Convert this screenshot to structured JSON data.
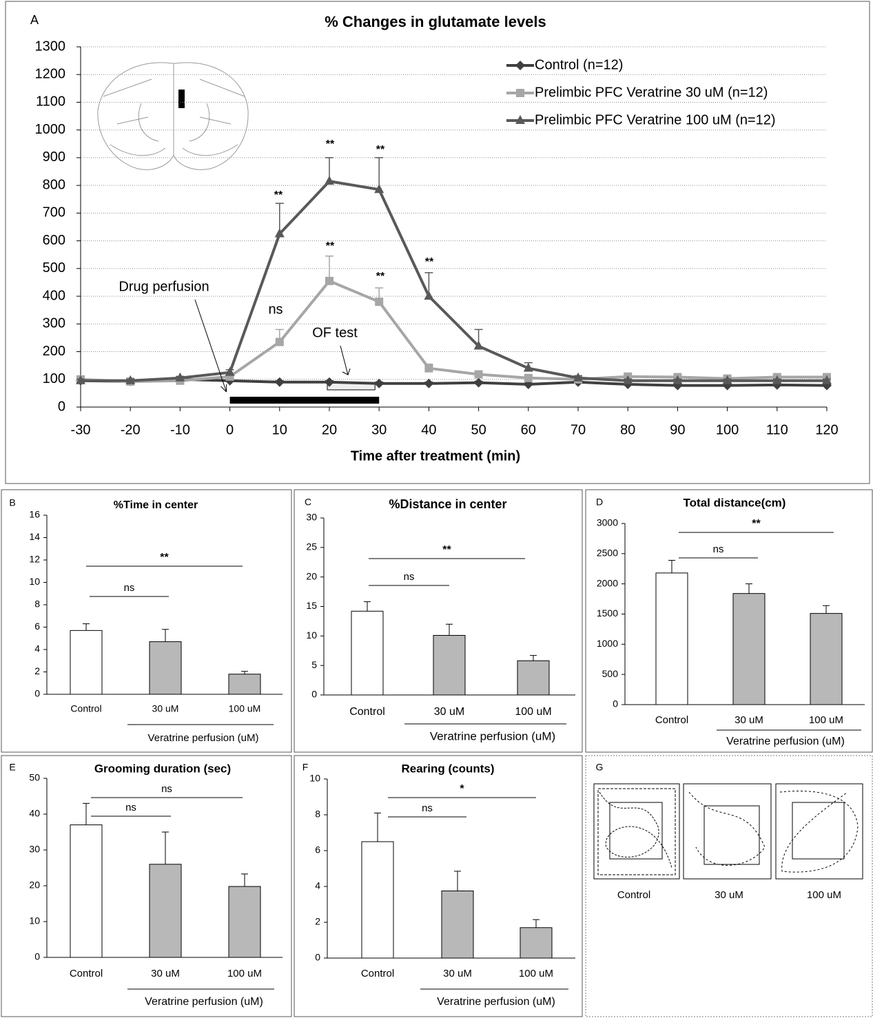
{
  "chart_data": [
    {
      "type": "line",
      "panel": "A",
      "title": "% Changes in glutamate levels",
      "xlabel": "Time after treatment (min)",
      "x": [
        -30,
        -20,
        -10,
        0,
        10,
        20,
        30,
        40,
        50,
        60,
        70,
        80,
        90,
        100,
        110,
        120
      ],
      "xlim": [
        -30,
        120
      ],
      "xticks": [
        -30,
        -20,
        -10,
        0,
        10,
        20,
        30,
        40,
        50,
        60,
        70,
        80,
        90,
        100,
        110,
        120
      ],
      "ylim": [
        0,
        1300
      ],
      "yticks": [
        0,
        100,
        200,
        300,
        400,
        500,
        600,
        700,
        800,
        900,
        1000,
        1100,
        1200,
        1300
      ],
      "grid": true,
      "legend": "upper right",
      "series": [
        {
          "name": "Control (n=12)",
          "color": "#404040",
          "marker": "diamond",
          "values": [
            95,
            93,
            100,
            95,
            90,
            90,
            85,
            85,
            88,
            82,
            90,
            82,
            78,
            78,
            80,
            78
          ],
          "errors": [
            5,
            5,
            5,
            5,
            5,
            5,
            5,
            5,
            5,
            5,
            5,
            5,
            5,
            5,
            5,
            5
          ]
        },
        {
          "name": "Prelimbic PFC Veratrine 30 uM (n=12)",
          "color": "#a6a6a6",
          "marker": "square",
          "values": [
            100,
            92,
            95,
            110,
            235,
            455,
            380,
            140,
            118,
            105,
            100,
            110,
            108,
            103,
            108,
            108
          ],
          "errors": [
            8,
            6,
            6,
            10,
            45,
            90,
            50,
            15,
            10,
            8,
            8,
            10,
            10,
            8,
            10,
            10
          ]
        },
        {
          "name": "Prelimbic PFC Veratrine 100 uM (n=12)",
          "color": "#595959",
          "marker": "triangle",
          "values": [
            95,
            95,
            105,
            125,
            625,
            815,
            785,
            400,
            220,
            140,
            105,
            95,
            95,
            95,
            95,
            95
          ],
          "errors": [
            6,
            6,
            6,
            10,
            110,
            85,
            115,
            85,
            60,
            20,
            8,
            6,
            6,
            6,
            6,
            6
          ]
        }
      ],
      "annotations": [
        "**",
        "**",
        "**",
        "**",
        "**",
        "**",
        "ns",
        "Drug perfusion",
        "OF test"
      ]
    },
    {
      "type": "bar",
      "panel": "B",
      "title": "%Time in center",
      "xlabel": "Veratrine perfusion  (uM)",
      "categories": [
        "Control",
        "30 uM",
        "100 uM"
      ],
      "values": [
        5.7,
        4.7,
        1.8
      ],
      "errors": [
        0.6,
        1.1,
        0.25
      ],
      "colors": [
        "#ffffff",
        "#b8b8b8",
        "#b8b8b8"
      ],
      "ylim": [
        0,
        16
      ],
      "yticks": [
        0,
        2,
        4,
        6,
        8,
        10,
        12,
        14,
        16
      ],
      "annotations": [
        "ns",
        "**"
      ]
    },
    {
      "type": "bar",
      "panel": "C",
      "title": "%Distance in center",
      "xlabel": "Veratrine perfusion (uM)",
      "categories": [
        "Control",
        "30 uM",
        "100 uM"
      ],
      "values": [
        14.2,
        10.1,
        5.8
      ],
      "errors": [
        1.6,
        1.9,
        0.9
      ],
      "colors": [
        "#ffffff",
        "#b8b8b8",
        "#b8b8b8"
      ],
      "ylim": [
        0,
        30
      ],
      "yticks": [
        0,
        5,
        10,
        15,
        20,
        25,
        30
      ],
      "annotations": [
        "ns",
        "**"
      ]
    },
    {
      "type": "bar",
      "panel": "D",
      "title": "Total distance(cm)",
      "xlabel": "Veratrine perfusion (uM)",
      "categories": [
        "Control",
        "30 uM",
        "100 uM"
      ],
      "values": [
        2180,
        1840,
        1510
      ],
      "errors": [
        210,
        160,
        130
      ],
      "colors": [
        "#ffffff",
        "#b8b8b8",
        "#b8b8b8"
      ],
      "ylim": [
        0,
        3000
      ],
      "yticks": [
        0,
        500,
        1000,
        1500,
        2000,
        2500,
        3000
      ],
      "annotations": [
        "ns",
        "**"
      ]
    },
    {
      "type": "bar",
      "panel": "E",
      "title": "Grooming duration (sec)",
      "xlabel": "Veratrine perfusion  (uM)",
      "categories": [
        "Control",
        "30 uM",
        "100 uM"
      ],
      "values": [
        37,
        26,
        19.8
      ],
      "errors": [
        6,
        9,
        3.5
      ],
      "colors": [
        "#ffffff",
        "#b8b8b8",
        "#b8b8b8"
      ],
      "ylim": [
        0,
        50
      ],
      "yticks": [
        0,
        10,
        20,
        30,
        40,
        50
      ],
      "annotations": [
        "ns",
        "ns"
      ]
    },
    {
      "type": "bar",
      "panel": "F",
      "title": "Rearing (counts)",
      "xlabel": "Veratrine perfusion  (uM)",
      "categories": [
        "Control",
        "30 uM",
        "100 uM"
      ],
      "values": [
        6.5,
        3.75,
        1.7
      ],
      "errors": [
        1.6,
        1.1,
        0.45
      ],
      "colors": [
        "#ffffff",
        "#b8b8b8",
        "#b8b8b8"
      ],
      "ylim": [
        0,
        10
      ],
      "yticks": [
        0,
        2,
        4,
        6,
        8,
        10
      ],
      "annotations": [
        "ns",
        "*"
      ]
    }
  ],
  "panel_g": {
    "panel": "G",
    "labels": [
      "Control",
      "30 uM",
      "100 uM"
    ]
  }
}
